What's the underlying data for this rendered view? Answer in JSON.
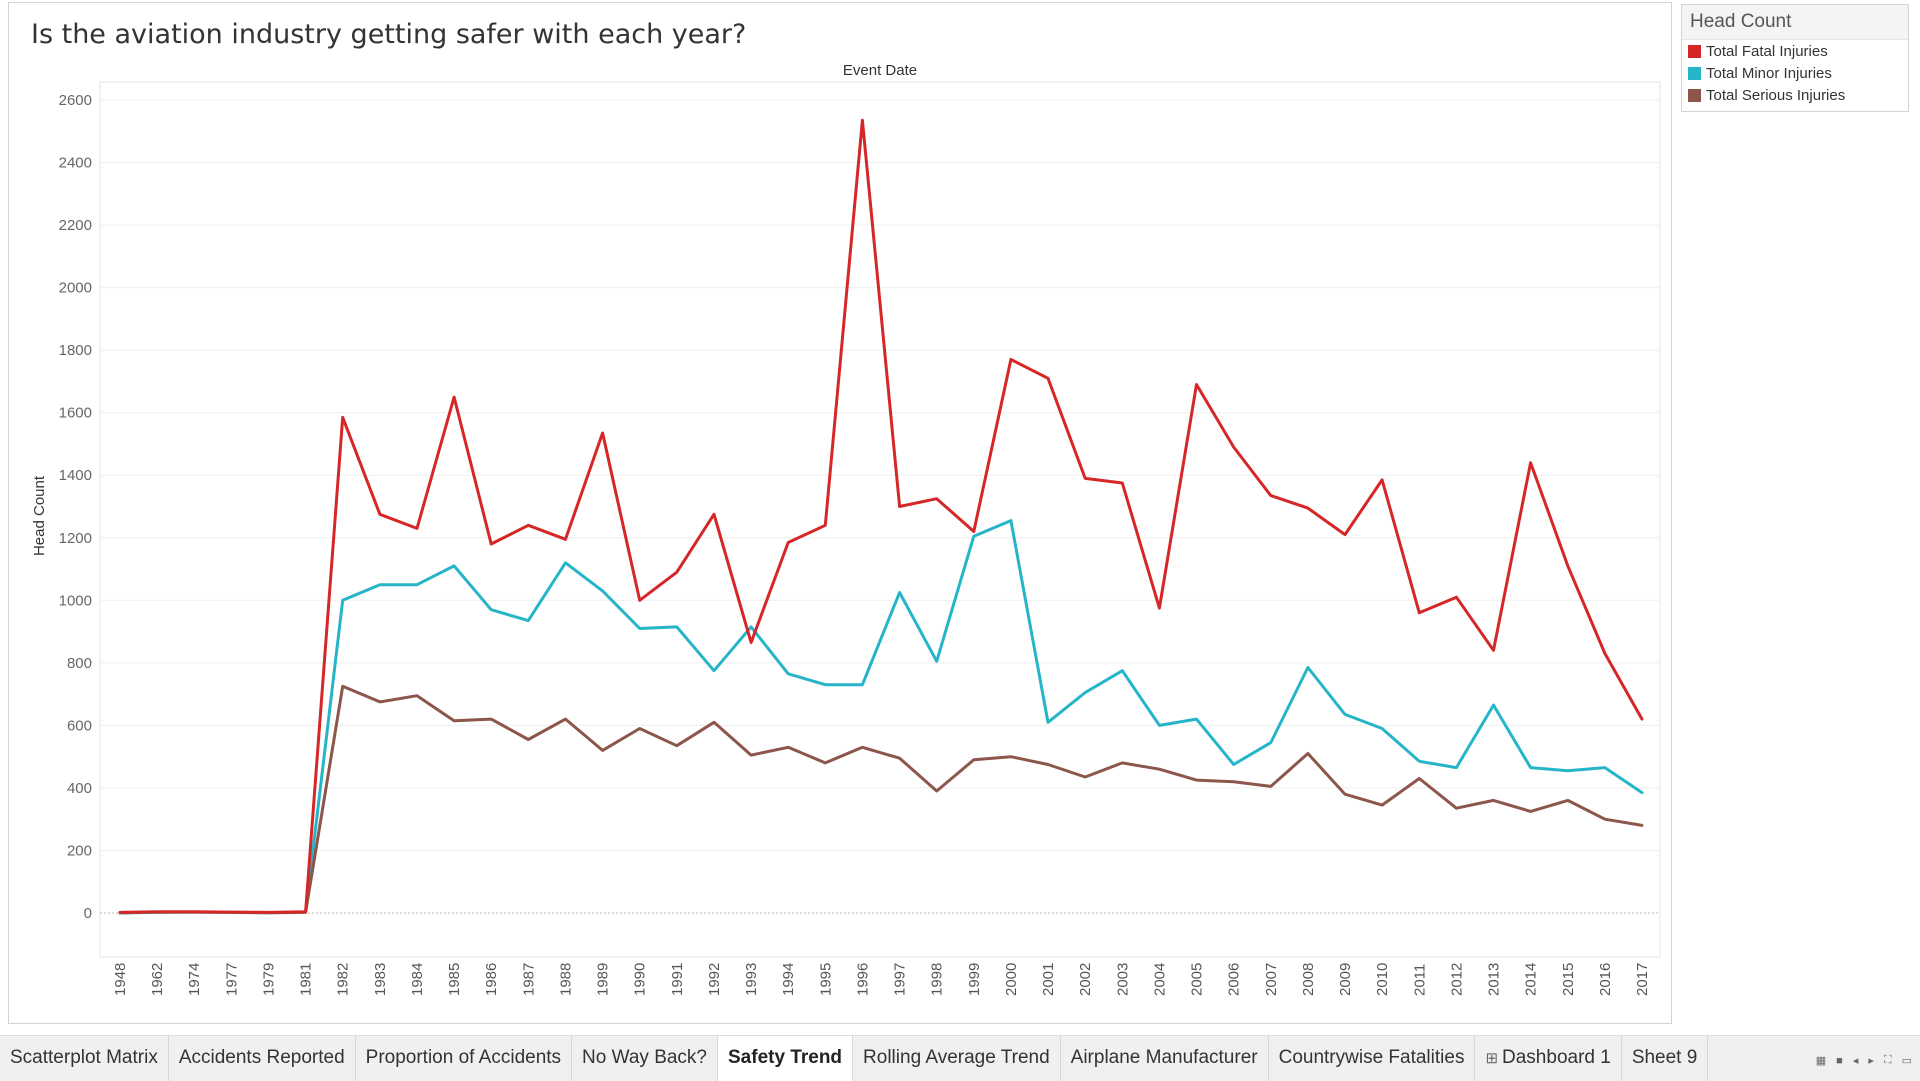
{
  "sheet_title": "Is the aviation industry getting safer with each year?",
  "legend": {
    "title": "Head Count",
    "items": [
      {
        "label": "Total Fatal Injuries",
        "color": "#d62728"
      },
      {
        "label": "Total Minor Injuries",
        "color": "#26b5c8"
      },
      {
        "label": "Total Serious Injuries",
        "color": "#8c564b"
      }
    ]
  },
  "tabs": [
    {
      "label": "Scatterplot Matrix",
      "active": false,
      "icon": ""
    },
    {
      "label": "Accidents Reported",
      "active": false,
      "icon": ""
    },
    {
      "label": "Proportion of Accidents",
      "active": false,
      "icon": ""
    },
    {
      "label": "No Way Back?",
      "active": false,
      "icon": ""
    },
    {
      "label": "Safety Trend",
      "active": true,
      "icon": ""
    },
    {
      "label": "Rolling Average Trend",
      "active": false,
      "icon": ""
    },
    {
      "label": "Airplane Manufacturer",
      "active": false,
      "icon": ""
    },
    {
      "label": "Countrywise Fatalities",
      "active": false,
      "icon": ""
    },
    {
      "label": "Dashboard 1",
      "active": false,
      "icon": "⊞"
    },
    {
      "label": "Sheet 9",
      "active": false,
      "icon": ""
    }
  ],
  "tab_controls": [
    "sheet-sorter-icon",
    "filmstrip-icon",
    "prev-sheet-icon",
    "next-sheet-icon",
    "fullscreen-icon",
    "present-icon"
  ],
  "chart_data": {
    "type": "line",
    "xlabel": "Event Date",
    "ylabel": "Head Count",
    "ylim": [
      0,
      2600
    ],
    "yticks": [
      0,
      200,
      400,
      600,
      800,
      1000,
      1200,
      1400,
      1600,
      1800,
      2000,
      2200,
      2400,
      2600
    ],
    "grid": true,
    "legend_position": "right",
    "categories": [
      "1948",
      "1962",
      "1974",
      "1977",
      "1979",
      "1981",
      "1982",
      "1983",
      "1984",
      "1985",
      "1986",
      "1987",
      "1988",
      "1989",
      "1990",
      "1991",
      "1992",
      "1993",
      "1994",
      "1995",
      "1996",
      "1997",
      "1998",
      "1999",
      "2000",
      "2001",
      "2002",
      "2003",
      "2004",
      "2005",
      "2006",
      "2007",
      "2008",
      "2009",
      "2010",
      "2011",
      "2012",
      "2013",
      "2014",
      "2015",
      "2016",
      "2017"
    ],
    "series": [
      {
        "name": "Total Fatal Injuries",
        "color": "#d62728",
        "values": [
          2,
          4,
          4,
          3,
          2,
          4,
          1585,
          1275,
          1230,
          1650,
          1180,
          1240,
          1195,
          1535,
          1000,
          1090,
          1275,
          865,
          1185,
          1240,
          2535,
          1300,
          1325,
          1220,
          1770,
          1710,
          1390,
          1375,
          975,
          1690,
          1490,
          1335,
          1295,
          1210,
          1385,
          960,
          1010,
          840,
          1440,
          1110,
          830,
          620
        ]
      },
      {
        "name": "Total Minor Injuries",
        "color": "#26b5c8",
        "values": [
          0,
          2,
          3,
          2,
          1,
          3,
          1000,
          1050,
          1050,
          1110,
          970,
          935,
          1120,
          1030,
          910,
          915,
          775,
          915,
          765,
          730,
          730,
          1025,
          805,
          1205,
          1255,
          610,
          705,
          775,
          600,
          620,
          475,
          545,
          785,
          635,
          590,
          485,
          465,
          665,
          465,
          455,
          465,
          385
        ]
      },
      {
        "name": "Total Serious Injuries",
        "color": "#8c564b",
        "values": [
          1,
          3,
          3,
          2,
          1,
          2,
          725,
          675,
          695,
          615,
          620,
          555,
          620,
          520,
          590,
          535,
          610,
          505,
          530,
          480,
          530,
          495,
          390,
          490,
          500,
          475,
          435,
          480,
          460,
          425,
          420,
          405,
          510,
          380,
          345,
          430,
          335,
          360,
          325,
          360,
          300,
          280
        ]
      }
    ]
  }
}
